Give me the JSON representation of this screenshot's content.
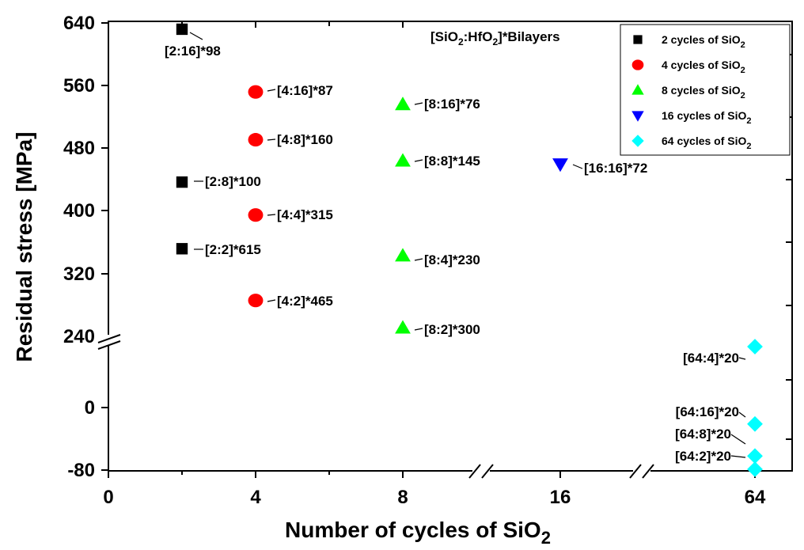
{
  "chart_data": {
    "type": "scatter",
    "title": "[SiO2:HfO2]*Bilayers",
    "title_parts": {
      "pre": "[SiO",
      "sub1": "2",
      "mid": ":HfO",
      "sub2": "2",
      "post": "]*Bilayers"
    },
    "xlabel": "Number of cycles of SiO",
    "xlabel_sub": "2",
    "ylabel": "Residual stress [MPa]",
    "x_categories": [
      "0",
      "4",
      "8",
      "16",
      "64"
    ],
    "y_ticks": [
      "640",
      "560",
      "480",
      "400",
      "320",
      "240",
      "0",
      "-80"
    ],
    "axis_breaks": {
      "x": [
        "between 8 and 16",
        "between 16 and 64"
      ],
      "y": [
        "between 0 and 240"
      ]
    },
    "legend_position": "top-right",
    "series": [
      {
        "name": "2 cycles of SiO2",
        "legend_text": "2 cycles of SiO",
        "legend_sub": "2",
        "marker": "square",
        "color": "#000000",
        "points": [
          {
            "x": "2",
            "y": 632,
            "label": "[2:16]*98"
          },
          {
            "x": "2",
            "y": 437,
            "label": "[2:8]*100"
          },
          {
            "x": "2",
            "y": 352,
            "label": "[2:2]*615"
          }
        ]
      },
      {
        "name": "4 cycles of SiO2",
        "legend_text": "4 cycles of SiO",
        "legend_sub": "2",
        "marker": "circle",
        "color": "#ff0000",
        "points": [
          {
            "x": "4",
            "y": 552,
            "label": "[4:16]*87"
          },
          {
            "x": "4",
            "y": 491,
            "label": "[4:8]*160"
          },
          {
            "x": "4",
            "y": 395,
            "label": "[4:4]*315"
          },
          {
            "x": "4",
            "y": 286,
            "label": "[4:2]*465"
          }
        ]
      },
      {
        "name": "8 cycles of SiO2",
        "legend_text": "8 cycles of SiO",
        "legend_sub": "2",
        "marker": "triangle-up",
        "color": "#00ff00",
        "points": [
          {
            "x": "8",
            "y": 536,
            "label": "[8:16]*76"
          },
          {
            "x": "8",
            "y": 464,
            "label": "[8:8]*145"
          },
          {
            "x": "8",
            "y": 343,
            "label": "[8:4]*230"
          },
          {
            "x": "8",
            "y": 251,
            "label": "[8:2]*300"
          }
        ]
      },
      {
        "name": "16 cycles of SiO2",
        "legend_text": "16 cycles of SiO",
        "legend_sub": "2",
        "marker": "triangle-down",
        "color": "#0000ff",
        "points": [
          {
            "x": "16",
            "y": 460,
            "label": "[16:16]*72"
          }
        ]
      },
      {
        "name": "64 cycles of SiO2",
        "legend_text": "64 cycles of SiO",
        "legend_sub": "2",
        "marker": "diamond",
        "color": "#00ffff",
        "points": [
          {
            "x": "64",
            "y": 78,
            "label": "[64:4]*20"
          },
          {
            "x": "64",
            "y": -21,
            "label": "[64:16]*20"
          },
          {
            "x": "64",
            "y": -62,
            "label": "[64:8]*20"
          },
          {
            "x": "64",
            "y": -79,
            "label": "[64:2]*20"
          }
        ]
      }
    ]
  }
}
